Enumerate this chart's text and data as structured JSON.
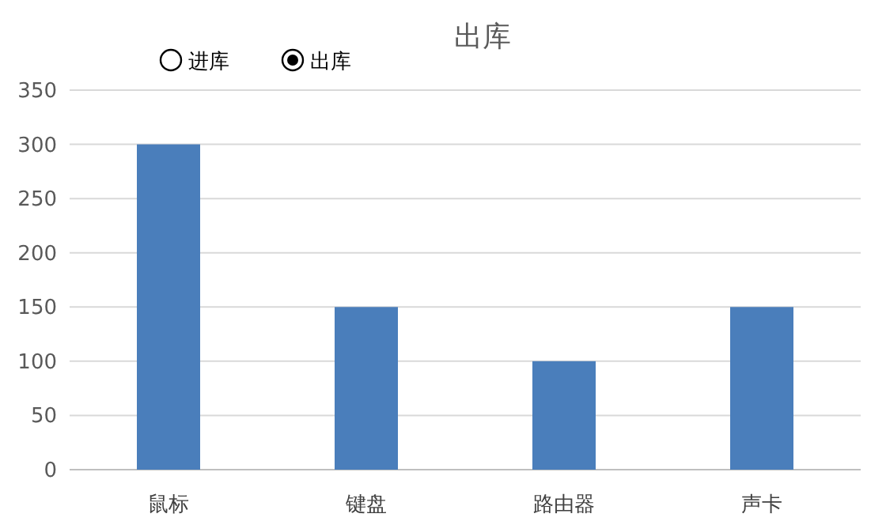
{
  "chart_data": {
    "type": "bar",
    "title": "出库",
    "categories": [
      "鼠标",
      "键盘",
      "路由器",
      "声卡"
    ],
    "values": [
      300,
      150,
      100,
      150
    ],
    "color": "#4a7ebb",
    "ylim": [
      0,
      350
    ],
    "yticks": [
      0,
      50,
      100,
      150,
      200,
      250,
      300,
      350
    ],
    "grid": "y",
    "annotations": [
      "进库",
      "出库"
    ]
  }
}
